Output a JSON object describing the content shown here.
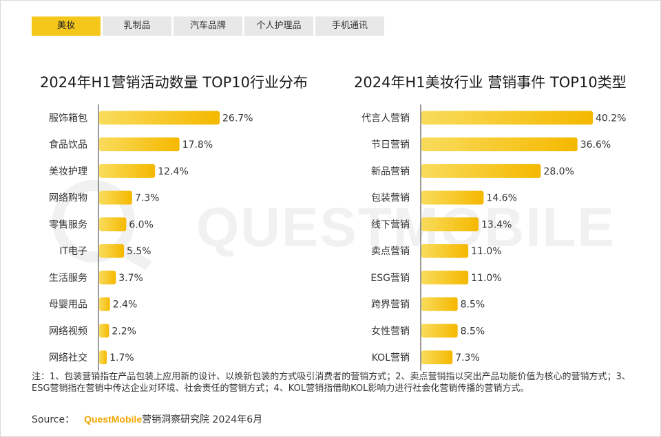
{
  "tabs": [
    {
      "label": "美妆",
      "active": true
    },
    {
      "label": "乳制品",
      "active": false
    },
    {
      "label": "汽车品牌",
      "active": false
    },
    {
      "label": "个人护理品",
      "active": false
    },
    {
      "label": "手机通讯",
      "active": false
    }
  ],
  "watermark": "QUESTMOBILE",
  "colors": {
    "bar_start": "#f9dc5c",
    "bar_end": "#f5b800",
    "tab_active": "#f5c71a",
    "brand": "#f0a500"
  },
  "chart_data": [
    {
      "type": "bar",
      "orientation": "horizontal",
      "title": "2024年H1营销活动数量 TOP10行业分布",
      "categories": [
        "服饰箱包",
        "食品饮品",
        "美妆护理",
        "网络购物",
        "零售服务",
        "IT电子",
        "生活服务",
        "母婴用品",
        "网络视频",
        "网络社交"
      ],
      "values": [
        26.7,
        17.8,
        12.4,
        7.3,
        6.0,
        5.5,
        3.7,
        2.4,
        2.2,
        1.7
      ],
      "value_labels": [
        "26.7%",
        "17.8%",
        "12.4%",
        "7.3%",
        "6.0%",
        "5.5%",
        "3.7%",
        "2.4%",
        "2.2%",
        "1.7%"
      ],
      "unit": "%"
    },
    {
      "type": "bar",
      "orientation": "horizontal",
      "title": "2024年H1美妆行业 营销事件 TOP10类型",
      "categories": [
        "代言人营销",
        "节日营销",
        "新品营销",
        "包装营销",
        "线下营销",
        "卖点营销",
        "ESG营销",
        "跨界营销",
        "女性营销",
        "KOL营销"
      ],
      "values": [
        40.2,
        36.6,
        28.0,
        14.6,
        13.4,
        11.0,
        11.0,
        8.5,
        8.5,
        7.3
      ],
      "value_labels": [
        "40.2%",
        "36.6%",
        "28.0%",
        "14.6%",
        "13.4%",
        "11.0%",
        "11.0%",
        "8.5%",
        "8.5%",
        "7.3%"
      ],
      "unit": "%"
    }
  ],
  "note": "注：1、包装营销指在产品包装上应用新的设计、以焕新包装的方式吸引消费者的营销方式；2、卖点营销指以突出产品功能价值为核心的营销方式；3、ESG营销指在营销中传达企业对环境、社会责任的营销方式；4、KOL营销指借助KOL影响力进行社会化营销传播的营销方式。",
  "source": {
    "label": "Source：",
    "brand": "QuestMobile",
    "text": "营销洞察研究院 2024年6月"
  }
}
